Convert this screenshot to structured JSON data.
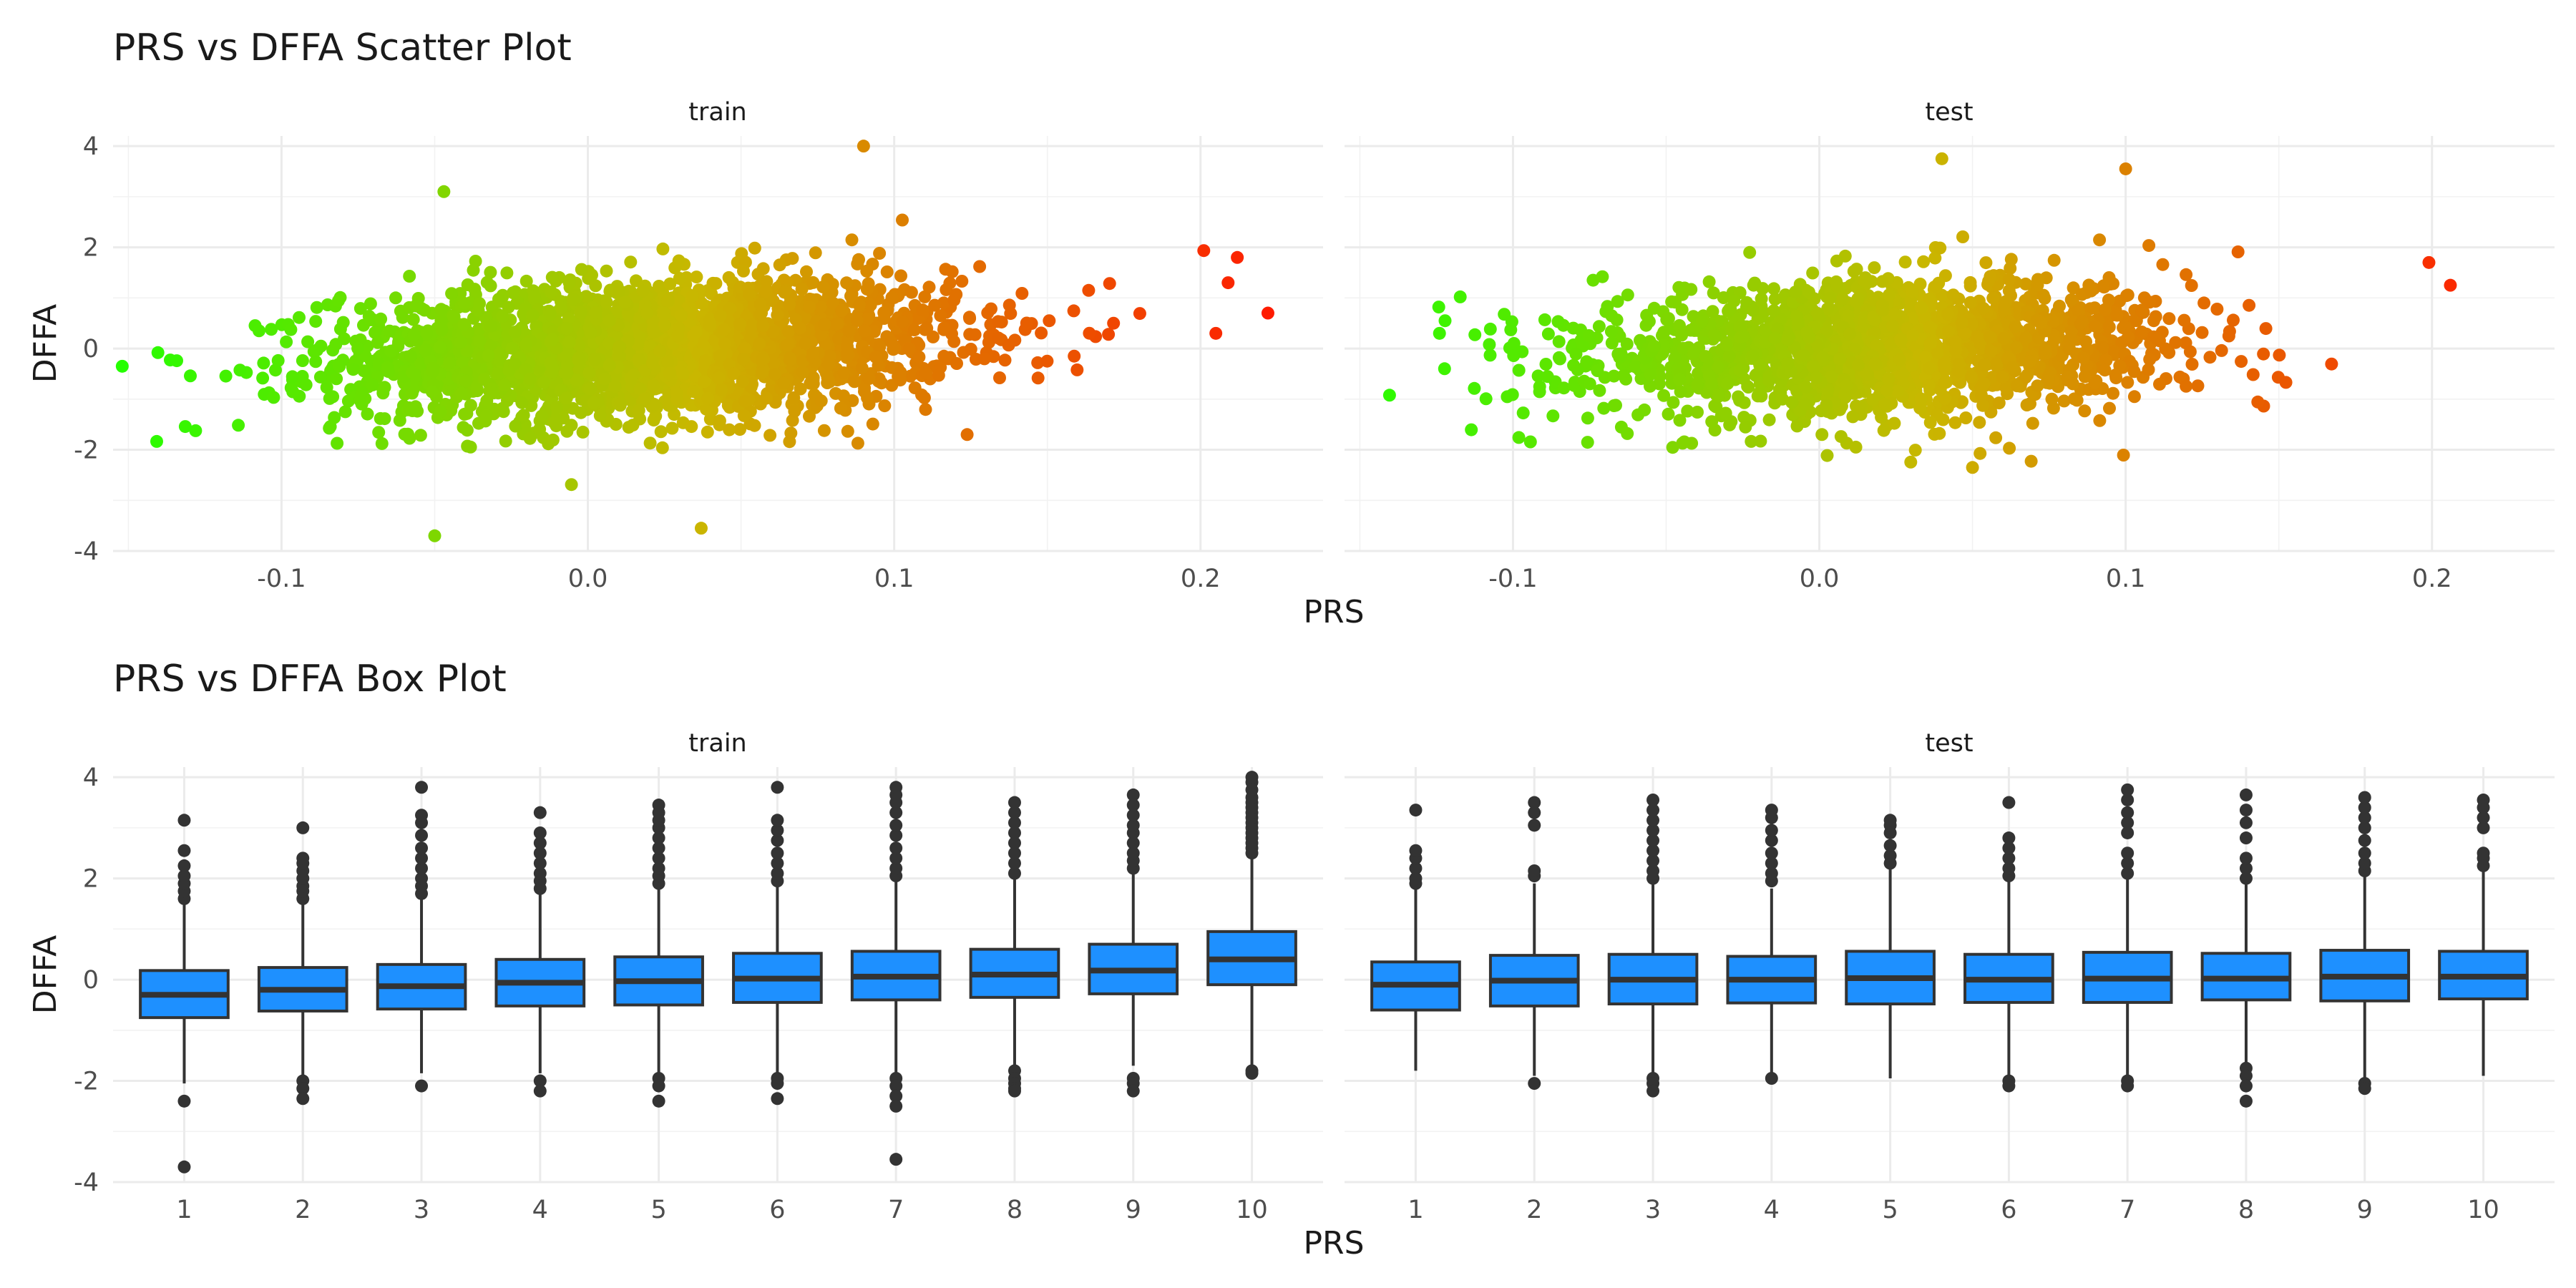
{
  "chart_data": [
    {
      "type": "scatter",
      "title": "PRS vs DFFA Scatter Plot",
      "xlabel": "PRS",
      "ylabel": "DFFA",
      "xlim": [
        -0.155,
        0.24
      ],
      "ylim": [
        -4.0,
        4.2
      ],
      "xticks": [
        "-0.1",
        "0.0",
        "0.1",
        "0.2"
      ],
      "yticks": [
        "-4",
        "-2",
        "0",
        "2",
        "4"
      ],
      "color_scale": {
        "low": "#22ff00",
        "mid": "#c9b700",
        "high": "#ff1a00"
      },
      "grid": true,
      "legend": "none",
      "panels": [
        {
          "name": "train",
          "x_center_mean": 0.02,
          "x_sd": 0.05,
          "y_slope": 2.5,
          "y_sd": 0.68,
          "outliers": [
            {
              "x": -0.152,
              "y": -0.35
            },
            {
              "x": 0.222,
              "y": 0.7
            },
            {
              "x": 0.212,
              "y": 1.8
            },
            {
              "x": 0.205,
              "y": 0.3
            },
            {
              "x": 0.209,
              "y": 1.3
            },
            {
              "x": -0.05,
              "y": -3.7
            },
            {
              "x": 0.037,
              "y": -3.55
            },
            {
              "x": 0.09,
              "y": 4.0
            },
            {
              "x": -0.047,
              "y": 3.1
            }
          ]
        },
        {
          "name": "test",
          "x_center_mean": 0.02,
          "x_sd": 0.048,
          "y_slope": 1.9,
          "y_sd": 0.66,
          "outliers": [
            {
              "x": 0.199,
              "y": 1.7
            },
            {
              "x": 0.206,
              "y": 1.25
            },
            {
              "x": -0.124,
              "y": 0.3
            },
            {
              "x": 0.05,
              "y": -2.35
            },
            {
              "x": 0.1,
              "y": 3.55
            },
            {
              "x": 0.04,
              "y": 3.75
            }
          ]
        }
      ]
    },
    {
      "type": "box",
      "title": "PRS vs DFFA Box Plot",
      "xlabel": "PRS",
      "ylabel": "DFFA",
      "ylim": [
        -4.0,
        4.2
      ],
      "categories": [
        "1",
        "2",
        "3",
        "4",
        "5",
        "6",
        "7",
        "8",
        "9",
        "10"
      ],
      "yticks": [
        "-4",
        "-2",
        "0",
        "2",
        "4"
      ],
      "fill": "#1e90ff",
      "grid": true,
      "panels": [
        {
          "name": "train",
          "boxes": [
            {
              "q1": -0.75,
              "median": -0.3,
              "q3": 0.18,
              "lower": -2.05,
              "upper": 1.55,
              "outliers_high": [
                1.6,
                1.75,
                1.9,
                2.05,
                2.25,
                2.55,
                3.15
              ],
              "outliers_low": [
                -2.4,
                -3.7
              ]
            },
            {
              "q1": -0.62,
              "median": -0.2,
              "q3": 0.24,
              "lower": -1.9,
              "upper": 1.55,
              "outliers_high": [
                1.6,
                1.75,
                1.85,
                2.0,
                2.15,
                2.3,
                2.4,
                3.0
              ],
              "outliers_low": [
                -2.0,
                -2.15,
                -2.35
              ]
            },
            {
              "q1": -0.58,
              "median": -0.13,
              "q3": 0.3,
              "lower": -1.85,
              "upper": 1.6,
              "outliers_high": [
                1.7,
                1.85,
                2.0,
                2.2,
                2.4,
                2.6,
                2.85,
                3.1,
                3.25,
                3.8
              ],
              "outliers_low": [
                -2.1
              ]
            },
            {
              "q1": -0.52,
              "median": -0.06,
              "q3": 0.4,
              "lower": -1.85,
              "upper": 1.7,
              "outliers_high": [
                1.8,
                1.95,
                2.1,
                2.3,
                2.5,
                2.7,
                2.9,
                3.3
              ],
              "outliers_low": [
                -2.0,
                -2.2
              ]
            },
            {
              "q1": -0.5,
              "median": -0.03,
              "q3": 0.45,
              "lower": -1.85,
              "upper": 1.8,
              "outliers_high": [
                1.9,
                2.05,
                2.2,
                2.4,
                2.6,
                2.8,
                3.0,
                3.15,
                3.3,
                3.45
              ],
              "outliers_low": [
                -1.95,
                -2.1,
                -2.4
              ]
            },
            {
              "q1": -0.45,
              "median": 0.02,
              "q3": 0.52,
              "lower": -1.85,
              "upper": 1.85,
              "outliers_high": [
                1.95,
                2.1,
                2.3,
                2.5,
                2.75,
                2.95,
                3.15,
                3.8
              ],
              "outliers_low": [
                -1.95,
                -2.05,
                -2.35
              ]
            },
            {
              "q1": -0.4,
              "median": 0.06,
              "q3": 0.56,
              "lower": -1.85,
              "upper": 1.95,
              "outliers_high": [
                2.05,
                2.2,
                2.4,
                2.6,
                2.85,
                3.05,
                3.3,
                3.5,
                3.65,
                3.8
              ],
              "outliers_low": [
                -1.95,
                -2.1,
                -2.3,
                -2.5,
                -3.55
              ]
            },
            {
              "q1": -0.35,
              "median": 0.1,
              "q3": 0.6,
              "lower": -1.7,
              "upper": 2.0,
              "outliers_high": [
                2.1,
                2.3,
                2.5,
                2.7,
                2.9,
                3.1,
                3.3,
                3.5
              ],
              "outliers_low": [
                -1.8,
                -1.95,
                -2.05,
                -2.15,
                -2.2
              ]
            },
            {
              "q1": -0.28,
              "median": 0.18,
              "q3": 0.7,
              "lower": -1.7,
              "upper": 2.1,
              "outliers_high": [
                2.2,
                2.35,
                2.5,
                2.7,
                2.9,
                3.05,
                3.25,
                3.45,
                3.65
              ],
              "outliers_low": [
                -1.95,
                -2.05,
                -2.2
              ]
            },
            {
              "q1": -0.1,
              "median": 0.4,
              "q3": 0.95,
              "lower": -1.7,
              "upper": 2.45,
              "outliers_high": [
                2.5,
                2.6,
                2.7,
                2.8,
                2.9,
                3.0,
                3.1,
                3.2,
                3.3,
                3.4,
                3.5,
                3.6,
                3.75,
                3.9,
                4.0
              ],
              "outliers_low": [
                -1.8,
                -1.85
              ]
            }
          ]
        },
        {
          "name": "test",
          "boxes": [
            {
              "q1": -0.6,
              "median": -0.1,
              "q3": 0.35,
              "lower": -1.8,
              "upper": 1.8,
              "outliers_high": [
                1.9,
                2.0,
                2.2,
                2.4,
                2.55,
                3.35
              ],
              "outliers_low": []
            },
            {
              "q1": -0.52,
              "median": -0.02,
              "q3": 0.48,
              "lower": -1.9,
              "upper": 1.9,
              "outliers_high": [
                2.05,
                2.15,
                3.05,
                3.3,
                3.5
              ],
              "outliers_low": [
                -2.05
              ]
            },
            {
              "q1": -0.48,
              "median": 0.0,
              "q3": 0.5,
              "lower": -1.85,
              "upper": 1.9,
              "outliers_high": [
                2.0,
                2.15,
                2.35,
                2.55,
                2.75,
                2.95,
                3.15,
                3.35,
                3.55
              ],
              "outliers_low": [
                -1.95,
                -2.05,
                -2.2
              ]
            },
            {
              "q1": -0.46,
              "median": 0.0,
              "q3": 0.46,
              "lower": -1.85,
              "upper": 1.8,
              "outliers_high": [
                1.95,
                2.1,
                2.3,
                2.5,
                2.75,
                2.95,
                3.2,
                3.35
              ],
              "outliers_low": [
                -1.95
              ]
            },
            {
              "q1": -0.48,
              "median": 0.03,
              "q3": 0.56,
              "lower": -1.95,
              "upper": 2.2,
              "outliers_high": [
                2.3,
                2.45,
                2.65,
                2.9,
                3.05,
                3.15
              ],
              "outliers_low": []
            },
            {
              "q1": -0.45,
              "median": 0.0,
              "q3": 0.5,
              "lower": -1.9,
              "upper": 1.95,
              "outliers_high": [
                2.05,
                2.2,
                2.4,
                2.6,
                2.8,
                3.5
              ],
              "outliers_low": [
                -2.0,
                -2.1
              ]
            },
            {
              "q1": -0.45,
              "median": 0.02,
              "q3": 0.54,
              "lower": -1.9,
              "upper": 2.0,
              "outliers_high": [
                2.1,
                2.3,
                2.5,
                2.9,
                3.1,
                3.3,
                3.55,
                3.75
              ],
              "outliers_low": [
                -2.0,
                -2.1
              ]
            },
            {
              "q1": -0.4,
              "median": 0.02,
              "q3": 0.52,
              "lower": -1.65,
              "upper": 1.9,
              "outliers_high": [
                2.0,
                2.2,
                2.4,
                2.8,
                3.1,
                3.35,
                3.65
              ],
              "outliers_low": [
                -1.75,
                -1.9,
                -2.1,
                -2.4
              ]
            },
            {
              "q1": -0.42,
              "median": 0.06,
              "q3": 0.58,
              "lower": -1.95,
              "upper": 2.05,
              "outliers_high": [
                2.15,
                2.3,
                2.5,
                2.75,
                3.0,
                3.2,
                3.4,
                3.6
              ],
              "outliers_low": [
                -2.05,
                -2.15
              ]
            },
            {
              "q1": -0.38,
              "median": 0.06,
              "q3": 0.56,
              "lower": -1.9,
              "upper": 2.15,
              "outliers_high": [
                2.25,
                2.4,
                2.5,
                3.0,
                3.2,
                3.4,
                3.55
              ],
              "outliers_low": []
            }
          ]
        }
      ]
    }
  ]
}
